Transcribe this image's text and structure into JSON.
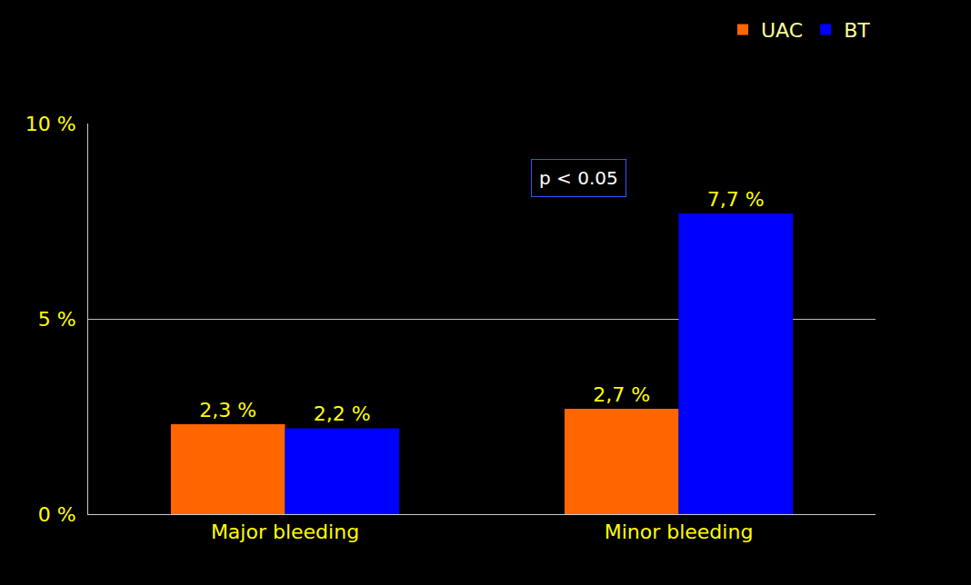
{
  "chart_data": {
    "type": "bar",
    "categories": [
      "Major bleeding",
      "Minor bleeding"
    ],
    "series": [
      {
        "name": "UAC",
        "color": "#ff6600",
        "values": [
          2.3,
          2.7
        ],
        "value_labels": [
          "2,3 %",
          "2,7 %"
        ]
      },
      {
        "name": "BT",
        "color": "#0000ff",
        "values": [
          2.2,
          7.7
        ],
        "value_labels": [
          "2,2 %",
          "7,7 %"
        ]
      }
    ],
    "ylim": [
      0,
      10
    ],
    "yticks": [
      {
        "value": 0,
        "label": "0 %"
      },
      {
        "value": 5,
        "label": "5 %"
      },
      {
        "value": 10,
        "label": "10 %"
      }
    ],
    "grid": true,
    "legend": "top-right",
    "data_labels": true,
    "annotations": [
      {
        "text": "p < 0.05",
        "category": "Minor bleeding",
        "y": 8.6
      }
    ]
  }
}
